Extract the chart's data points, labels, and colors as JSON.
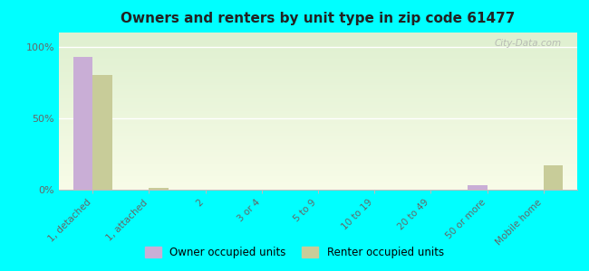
{
  "title": "Owners and renters by unit type in zip code 61477",
  "categories": [
    "1, detached",
    "1, attached",
    "2",
    "3 or 4",
    "5 to 9",
    "10 to 19",
    "20 to 49",
    "50 or more",
    "Mobile home"
  ],
  "owner_values": [
    93,
    0,
    0,
    0,
    0,
    0,
    0,
    3,
    0
  ],
  "renter_values": [
    80,
    1,
    0,
    0,
    0,
    0,
    0,
    0,
    17
  ],
  "owner_color": "#c9aed6",
  "renter_color": "#c8cc99",
  "background_color": "#00ffff",
  "ylabel_ticks": [
    "0%",
    "50%",
    "100%"
  ],
  "ytick_vals": [
    0,
    50,
    100
  ],
  "ylim": [
    0,
    110
  ],
  "bar_width": 0.35,
  "legend_owner": "Owner occupied units",
  "legend_renter": "Renter occupied units",
  "watermark": "City-Data.com"
}
